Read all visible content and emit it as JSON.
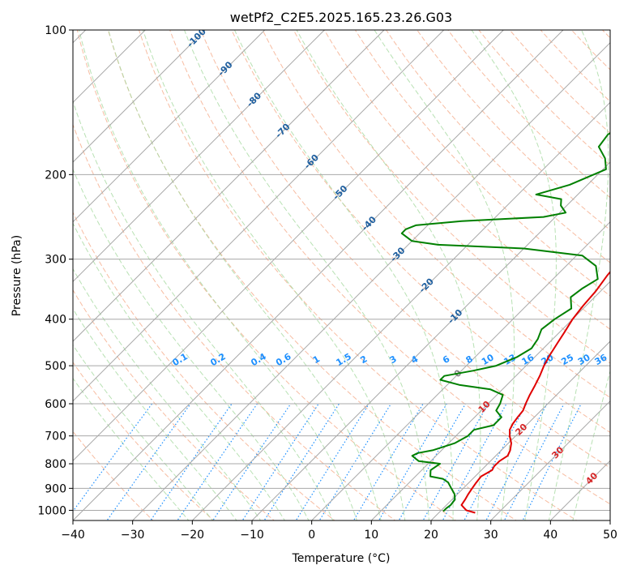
{
  "chart_data": {
    "type": "line",
    "subtype": "skew-T log-P diagram",
    "title": "wetPf2_C2E5.2025.165.23.26.G03",
    "xlabel": "Temperature (°C)",
    "ylabel": "Pressure (hPa)",
    "xlim": [
      -40,
      50
    ],
    "ylim": [
      1050,
      100
    ],
    "y_scale": "log",
    "grid": true,
    "x_ticks": [
      -40,
      -30,
      -20,
      -10,
      0,
      10,
      20,
      30,
      40,
      50
    ],
    "y_ticks": [
      100,
      200,
      300,
      400,
      500,
      600,
      700,
      800,
      900,
      1000
    ],
    "colors": {
      "temperature": "#e00000",
      "dewpoint": "#008000",
      "isotherm_labels": "#1f5f9f",
      "dry_adiabat_labels": "#d62728",
      "mixing_ratio_labels": "#1e90ff",
      "zero_isotherm_label": "#808080"
    },
    "series": [
      {
        "points": [
          [
            1012,
            26.1
          ],
          [
            1000,
            24.2
          ],
          [
            975,
            22.5
          ],
          [
            950,
            22.2
          ],
          [
            925,
            21.8
          ],
          [
            900,
            21.5
          ],
          [
            875,
            21.2
          ],
          [
            850,
            21.0
          ],
          [
            825,
            21.8
          ],
          [
            810,
            21.5
          ],
          [
            790,
            21.5
          ],
          [
            770,
            22.0
          ],
          [
            750,
            21.5
          ],
          [
            725,
            20.5
          ],
          [
            700,
            19.0
          ],
          [
            680,
            18.0
          ],
          [
            660,
            17.5
          ],
          [
            640,
            17.2
          ],
          [
            620,
            17.0
          ],
          [
            600,
            16.3
          ],
          [
            575,
            15.5
          ],
          [
            550,
            14.8
          ],
          [
            525,
            14.0
          ],
          [
            500,
            13.0
          ],
          [
            475,
            12.2
          ],
          [
            450,
            11.5
          ],
          [
            425,
            10.8
          ],
          [
            400,
            10.0
          ],
          [
            375,
            9.5
          ],
          [
            350,
            9.2
          ],
          [
            325,
            8.5
          ],
          [
            300,
            8.0
          ],
          [
            285,
            8.0
          ],
          [
            275,
            8.5
          ],
          [
            265,
            9.5
          ],
          [
            250,
            10.2
          ],
          [
            235,
            10.5
          ],
          [
            220,
            10.0
          ],
          [
            200,
            8.5
          ],
          [
            185,
            7.8
          ],
          [
            170,
            7.5
          ],
          [
            155,
            6.5
          ],
          [
            140,
            5.5
          ],
          [
            130,
            5.8
          ],
          [
            120,
            6.0
          ],
          [
            112,
            6.3
          ],
          [
            105,
            6.5
          ],
          [
            100,
            6.5
          ]
        ]
      },
      {
        "points": [
          [
            1005,
            20.5
          ],
          [
            990,
            20.5
          ],
          [
            975,
            20.7
          ],
          [
            950,
            20.5
          ],
          [
            925,
            19.5
          ],
          [
            900,
            18.0
          ],
          [
            875,
            16.5
          ],
          [
            860,
            15.0
          ],
          [
            850,
            12.5
          ],
          [
            825,
            11.5
          ],
          [
            800,
            12.0
          ],
          [
            790,
            8.0
          ],
          [
            775,
            6.5
          ],
          [
            770,
            6.0
          ],
          [
            760,
            6.5
          ],
          [
            750,
            8.5
          ],
          [
            725,
            11.0
          ],
          [
            700,
            12.0
          ],
          [
            680,
            12.0
          ],
          [
            665,
            14.5
          ],
          [
            640,
            14.5
          ],
          [
            620,
            12.5
          ],
          [
            600,
            12.0
          ],
          [
            575,
            11.0
          ],
          [
            560,
            8.0
          ],
          [
            548,
            2.0
          ],
          [
            535,
            -2.0
          ],
          [
            525,
            -2.0
          ],
          [
            512,
            2.0
          ],
          [
            500,
            5.0
          ],
          [
            480,
            7.0
          ],
          [
            460,
            8.0
          ],
          [
            440,
            7.5
          ],
          [
            420,
            6.5
          ],
          [
            400,
            7.0
          ],
          [
            380,
            8.0
          ],
          [
            360,
            6.0
          ],
          [
            345,
            6.5
          ],
          [
            330,
            7.5
          ],
          [
            310,
            5.0
          ],
          [
            295,
            1.0
          ],
          [
            285,
            -10.0
          ],
          [
            280,
            -25.0
          ],
          [
            275,
            -30.0
          ],
          [
            265,
            -33.0
          ],
          [
            260,
            -33.0
          ],
          [
            255,
            -32.0
          ],
          [
            250,
            -25.0
          ],
          [
            245,
            -12.0
          ],
          [
            240,
            -9.0
          ],
          [
            232,
            -11.0
          ],
          [
            225,
            -12.0
          ],
          [
            220,
            -17.0
          ],
          [
            210,
            -13.0
          ],
          [
            195,
            -9.5
          ],
          [
            185,
            -11.5
          ],
          [
            175,
            -14.5
          ],
          [
            165,
            -15.0
          ],
          [
            155,
            -13.5
          ],
          [
            145,
            -11.0
          ],
          [
            130,
            -6.0
          ],
          [
            110,
            0.5
          ],
          [
            100,
            2.5
          ]
        ]
      }
    ],
    "isotherm_labels": [
      "-100",
      "-90",
      "-80",
      "-70",
      "-60",
      "-50",
      "-40",
      "-30",
      "-20",
      "-10",
      "0"
    ],
    "dry_adiabat_labels": [
      "10",
      "20",
      "30",
      "40"
    ],
    "mixing_ratio_labels": [
      "0.1",
      "0.2",
      "0.4",
      "0.6",
      "1",
      "1.5",
      "2",
      "3",
      "4",
      "6",
      "8",
      "10",
      "13",
      "16",
      "20",
      "25",
      "30",
      "36"
    ]
  }
}
